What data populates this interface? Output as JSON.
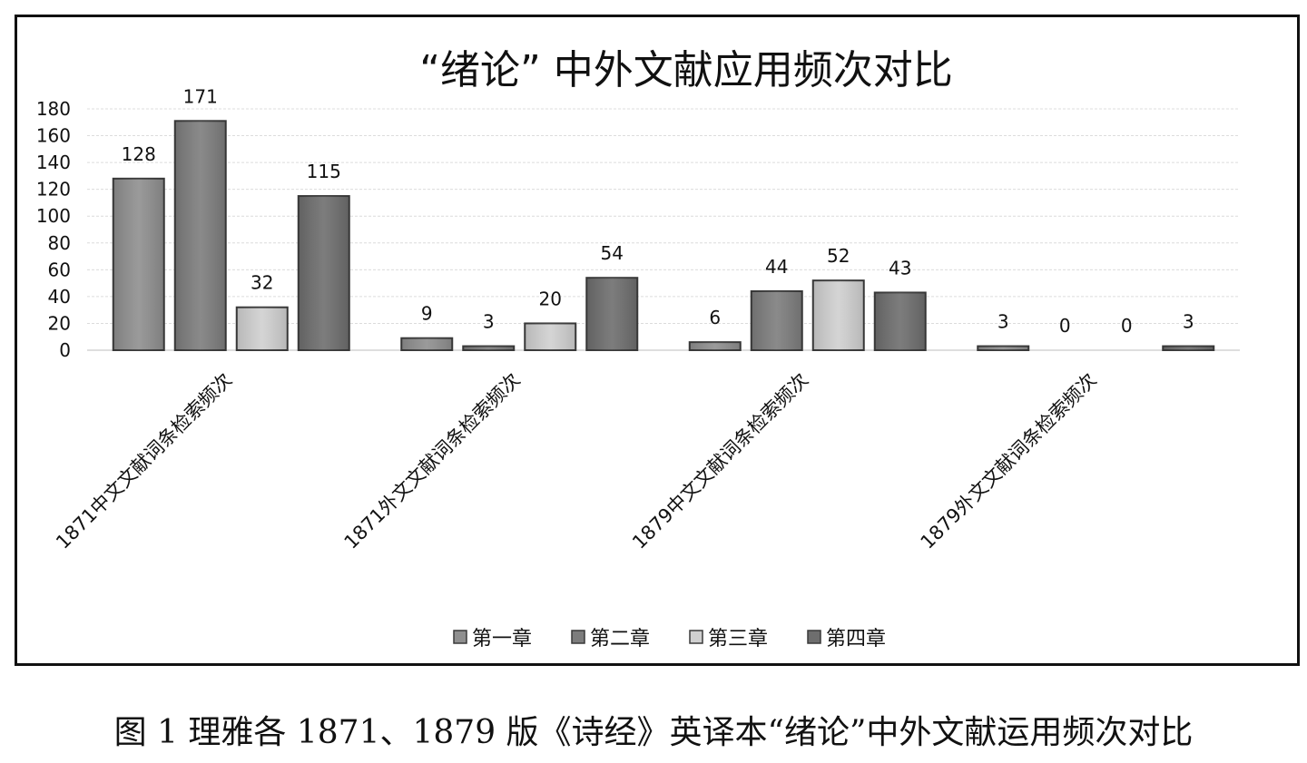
{
  "caption": "图 1    理雅各 1871、1879 版《诗经》英译本“绪论”中外文献运用频次对比",
  "chart_data": {
    "type": "bar",
    "title": "“绪论” 中外文献应用频次对比",
    "categories": [
      "1871中文文献词条检索频次",
      "1871外文文献词条检索频次",
      "1879中文文献词条检索频次",
      "1879外文文献词条检索频次"
    ],
    "series": [
      {
        "name": "第一章",
        "values": [
          128,
          9,
          6,
          3
        ],
        "color": "#8f8f8f"
      },
      {
        "name": "第二章",
        "values": [
          171,
          3,
          44,
          0
        ],
        "color": "#7d7d7d"
      },
      {
        "name": "第三章",
        "values": [
          32,
          20,
          52,
          0
        ],
        "color": "#d0d0d0"
      },
      {
        "name": "第四章",
        "values": [
          115,
          54,
          43,
          3
        ],
        "color": "#6e6e6e"
      }
    ],
    "ylim": [
      0,
      180
    ],
    "yticks": [
      0,
      20,
      40,
      60,
      80,
      100,
      120,
      140,
      160,
      180
    ],
    "xlabel": "",
    "ylabel": "",
    "grid": true,
    "legend_position": "bottom"
  }
}
